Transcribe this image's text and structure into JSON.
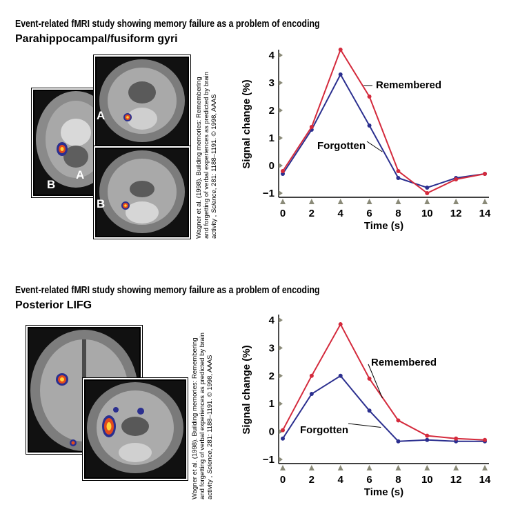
{
  "panels": [
    {
      "title": "Event-related fMRI study showing memory failure as a problem of encoding",
      "subtitle": "Parahippocampal/fusiform gyri",
      "credit_line1": "Wagner et al. (1998). Building memories: Remembering",
      "credit_line2": "and forgetting of verbal experiences as predicted by brain",
      "credit_line3_prefix": "activity ,",
      "credit_line3_journal": "Science",
      "credit_line3_suffix": ", 281: 1188–1191. © 1998, AAAS",
      "brain_labels": [
        "A",
        "A",
        "B",
        "B"
      ]
    },
    {
      "title": "Event-related fMRI study showing memory failure as a problem of encoding",
      "subtitle": "Posterior LIFG",
      "credit_line1": "Wagner et al. (1998). Building memories: Remembering",
      "credit_line2": "and forgetting of verbal experiences as predicted by brain",
      "credit_line3_prefix": "activity ,",
      "credit_line3_journal": "Science",
      "credit_line3_suffix": ", 281: 1188–1191. © 1998, AAAS"
    }
  ],
  "colors": {
    "remembered": "#d42a3c",
    "forgotten": "#2b2f8f",
    "tick_marker": "#8a8a78"
  },
  "chart_data": [
    {
      "type": "line",
      "xlabel": "Time (s)",
      "ylabel": "Signal change (%)",
      "x": [
        0,
        2,
        4,
        6,
        8,
        10,
        12,
        14
      ],
      "xlim": [
        0,
        14
      ],
      "ylim": [
        -1,
        4
      ],
      "yticks": [
        -1,
        0,
        1,
        2,
        3,
        4
      ],
      "series": [
        {
          "name": "Remembered",
          "values": [
            -0.2,
            1.4,
            4.2,
            2.5,
            -0.2,
            -1.0,
            -0.5,
            -0.3
          ]
        },
        {
          "name": "Forgotten",
          "values": [
            -0.3,
            1.3,
            3.3,
            1.45,
            -0.45,
            -0.8,
            -0.45,
            -0.3
          ]
        }
      ]
    },
    {
      "type": "line",
      "xlabel": "Time (s)",
      "ylabel": "Signal change (%)",
      "x": [
        0,
        2,
        4,
        6,
        8,
        10,
        12,
        14
      ],
      "xlim": [
        0,
        14
      ],
      "ylim": [
        -1,
        4
      ],
      "yticks": [
        -1,
        0,
        1,
        2,
        3,
        4
      ],
      "series": [
        {
          "name": "Remembered",
          "values": [
            0.05,
            2.0,
            3.85,
            1.9,
            0.4,
            -0.15,
            -0.25,
            -0.3
          ]
        },
        {
          "name": "Forgotten",
          "values": [
            -0.25,
            1.35,
            2.0,
            0.75,
            -0.35,
            -0.3,
            -0.35,
            -0.35
          ]
        }
      ]
    }
  ]
}
